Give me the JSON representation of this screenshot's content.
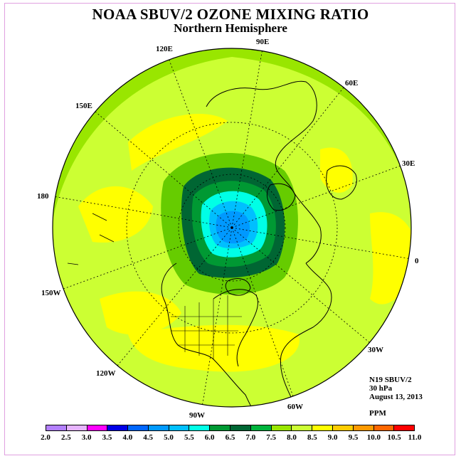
{
  "header": {
    "title": "NOAA SBUV/2 OZONE MIXING RATIO",
    "subtitle": "Northern Hemisphere"
  },
  "map": {
    "projection": "polar stereographic, north pole centered",
    "longitude_labels": [
      "90E",
      "60E",
      "30E",
      "0",
      "30W",
      "60W",
      "90W",
      "120W",
      "150W",
      "180",
      "150E",
      "120E"
    ],
    "field_description_colors": {
      "background_band": "#99e600",
      "mid_band": "#ccff33",
      "yellow_band": "#ffff00",
      "vortex_outer": "#006633",
      "vortex_green": "#009933",
      "vortex_cyan": "#00ffff",
      "vortex_blue": "#0099ff"
    }
  },
  "info": {
    "instrument": "N19 SBUV/2",
    "level": "30 hPa",
    "date": "August 13, 2013",
    "units": "PPM"
  },
  "colorbar": {
    "labels": [
      "2.0",
      "2.5",
      "3.0",
      "3.5",
      "4.0",
      "4.5",
      "5.0",
      "5.5",
      "6.0",
      "6.5",
      "7.0",
      "7.5",
      "8.0",
      "8.5",
      "9.0",
      "9.5",
      "10.0",
      "10.5",
      "11.0"
    ],
    "colors": [
      "#b380ff",
      "#e6b3ff",
      "#ff00ff",
      "#0000e6",
      "#0066ff",
      "#0099ff",
      "#00bfff",
      "#00ffe6",
      "#009933",
      "#006633",
      "#00b33c",
      "#99e600",
      "#ccff33",
      "#ffff00",
      "#ffcc00",
      "#ff9900",
      "#ff6600",
      "#ff0000",
      "#8b4513"
    ]
  }
}
